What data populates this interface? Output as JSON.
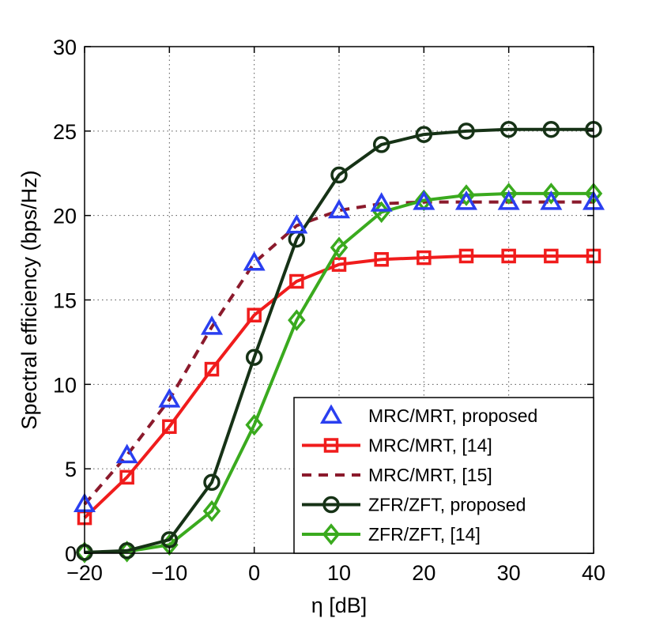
{
  "chart_data": {
    "type": "line",
    "title": "",
    "xlabel": "η [dB]",
    "ylabel": "Spectral efficiency (bps/Hz)",
    "xlim": [
      -20,
      40
    ],
    "ylim": [
      0,
      30
    ],
    "grid": true,
    "legend_position": "bottom-right",
    "x": [
      -20,
      -15,
      -10,
      -5,
      0,
      5,
      10,
      15,
      20,
      25,
      30,
      35,
      40
    ],
    "xticks": [
      -20,
      -10,
      0,
      10,
      20,
      30,
      40
    ],
    "xtick_labels": [
      "−20",
      "−10",
      "0",
      "10",
      "20",
      "30",
      "40"
    ],
    "yticks": [
      0,
      5,
      10,
      15,
      20,
      25,
      30
    ],
    "ytick_labels": [
      "0",
      "5",
      "10",
      "15",
      "20",
      "25",
      "30"
    ],
    "series": [
      {
        "name": "MRC/MRT, proposed",
        "color": "#2a3ff0",
        "line": "none",
        "marker": "triangle",
        "values": [
          2.9,
          5.8,
          9.1,
          13.4,
          17.2,
          19.4,
          20.3,
          20.7,
          20.8,
          20.8,
          20.8,
          20.8,
          20.8
        ]
      },
      {
        "name": "MRC/MRT, [14]",
        "color": "#f01c1c",
        "line": "solid",
        "marker": "square",
        "values": [
          2.1,
          4.5,
          7.5,
          10.9,
          14.1,
          16.1,
          17.1,
          17.4,
          17.5,
          17.6,
          17.6,
          17.6,
          17.6
        ]
      },
      {
        "name": "MRC/MRT, [15]",
        "color": "#8b1a2c",
        "line": "dashed",
        "marker": "none",
        "values": [
          2.9,
          5.8,
          9.1,
          13.4,
          17.2,
          19.4,
          20.3,
          20.7,
          20.8,
          20.8,
          20.8,
          20.8,
          20.8
        ]
      },
      {
        "name": "ZFR/ZFT, proposed",
        "color": "#163216",
        "line": "solid",
        "marker": "circle",
        "values": [
          0.05,
          0.15,
          0.8,
          4.2,
          11.6,
          18.6,
          22.4,
          24.2,
          24.8,
          25.0,
          25.1,
          25.1,
          25.1
        ]
      },
      {
        "name": "ZFR/ZFT, [14]",
        "color": "#3aaa1e",
        "line": "solid",
        "marker": "diamond",
        "values": [
          0.05,
          0.1,
          0.5,
          2.5,
          7.6,
          13.8,
          18.1,
          20.2,
          20.9,
          21.2,
          21.3,
          21.3,
          21.3
        ]
      }
    ]
  }
}
